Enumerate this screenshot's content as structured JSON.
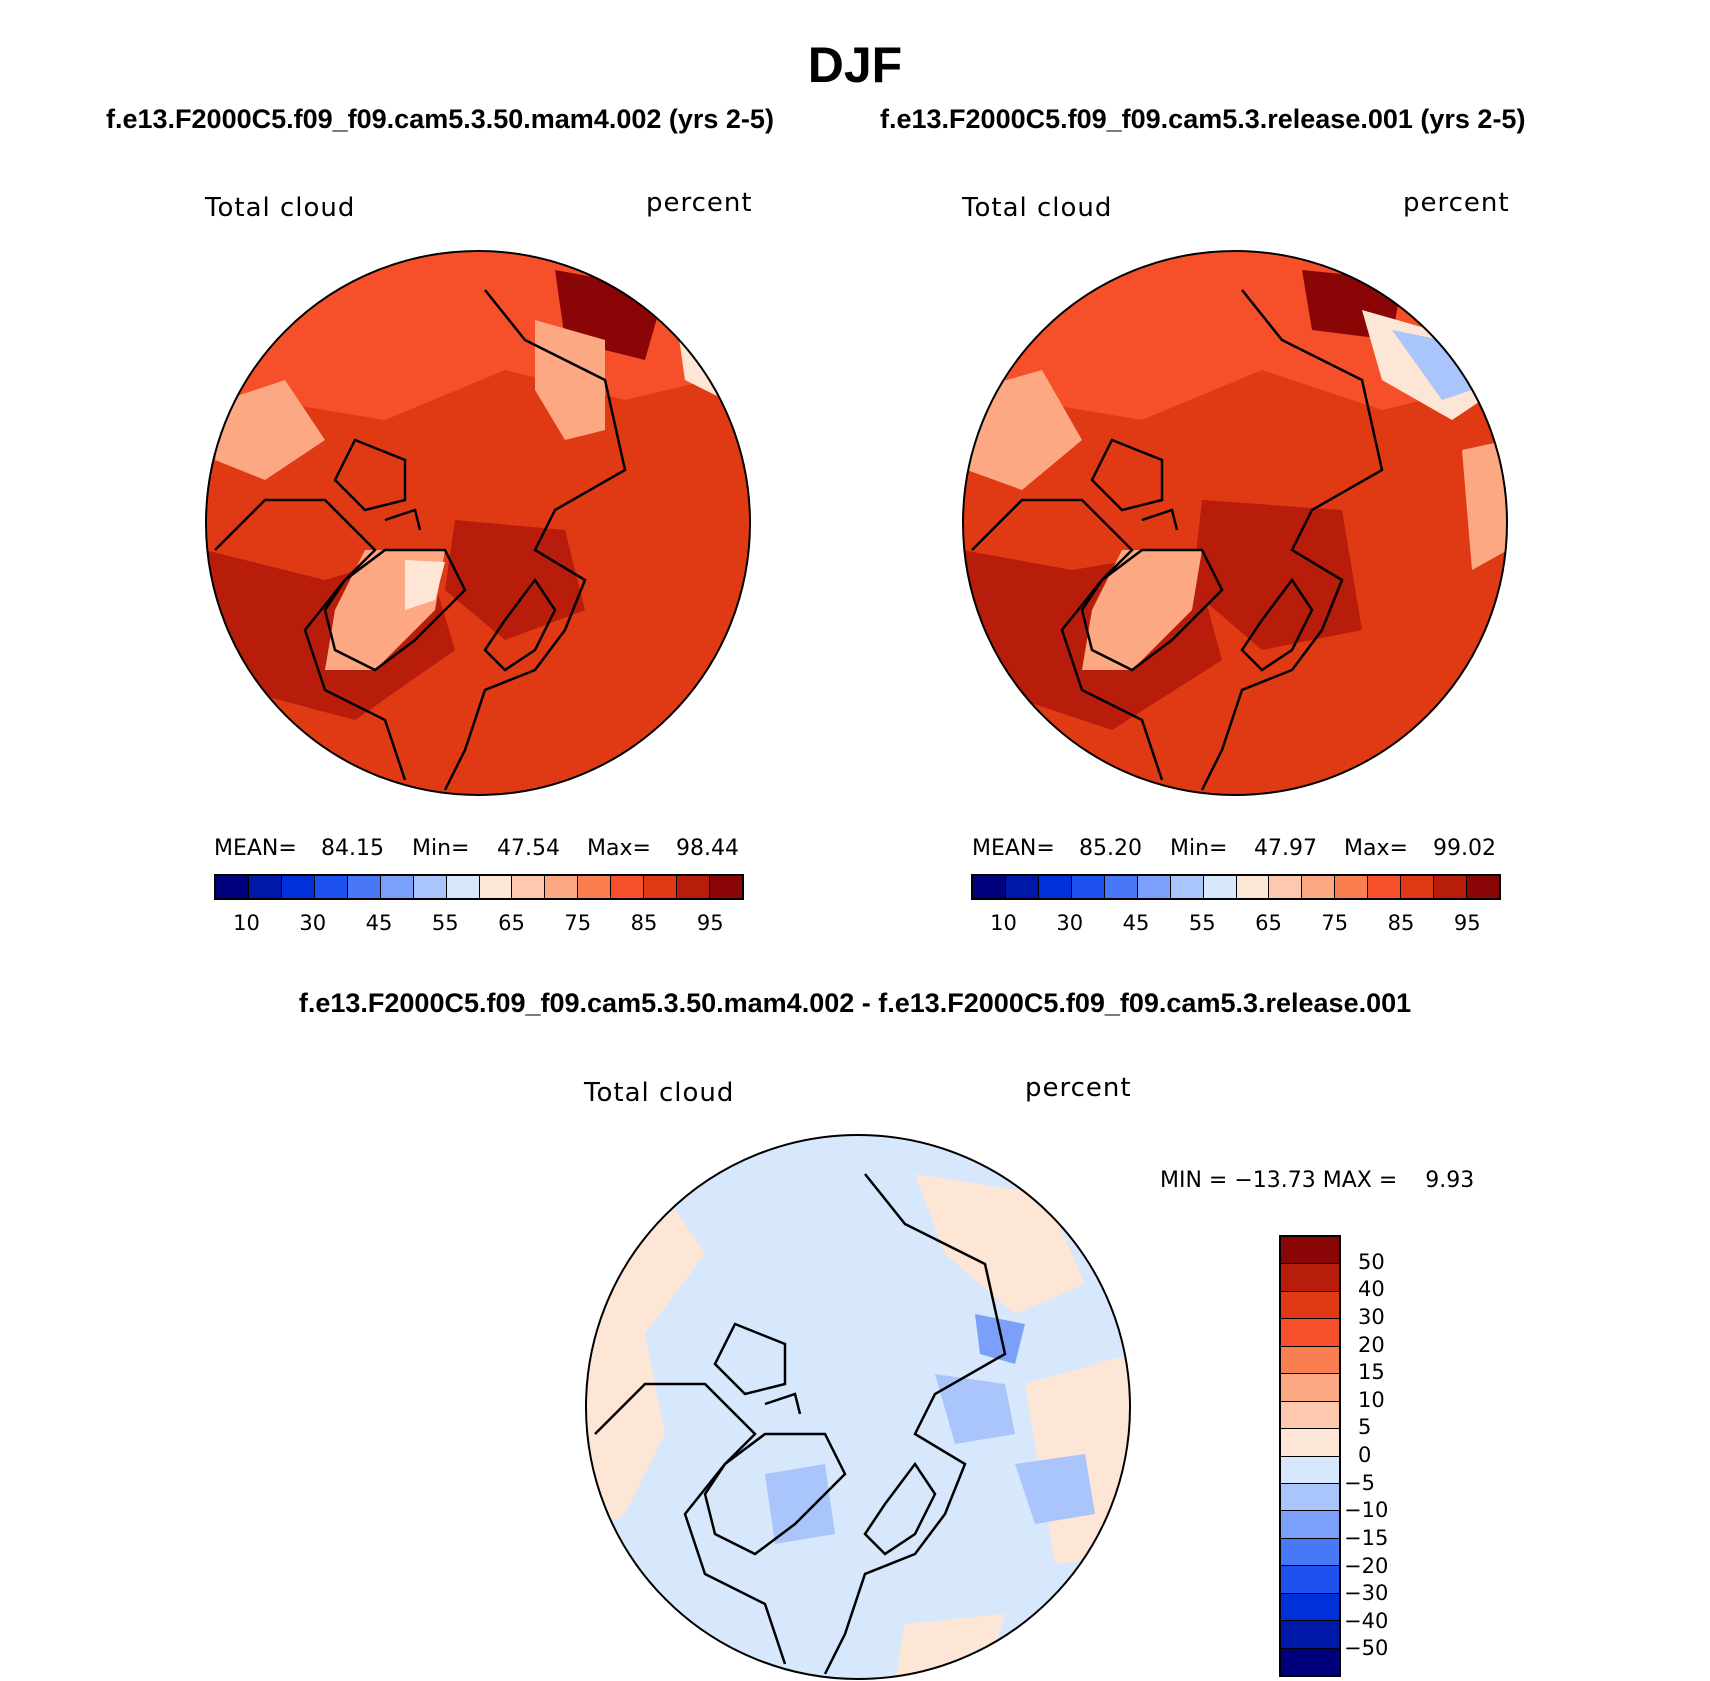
{
  "figure": {
    "title": "DJF",
    "left_subtitle": "f.e13.F2000C5.f09_f09.cam5.3.50.mam4.002 (yrs 2-5)",
    "right_subtitle": "f.e13.F2000C5.f09_f09.cam5.3.release.001 (yrs 2-5)",
    "diff_subtitle": "f.e13.F2000C5.f09_f09.cam5.3.50.mam4.002 - f.e13.F2000C5.f09_f09.cam5.3.release.001"
  },
  "panels": {
    "left": {
      "variable": "Total cloud",
      "units": "percent",
      "mean_label": "MEAN=",
      "mean": "84.15",
      "min_label": "Min=",
      "min": "47.54",
      "max_label": "Max=",
      "max": "98.44"
    },
    "right": {
      "variable": "Total cloud",
      "units": "percent",
      "mean_label": "MEAN=",
      "mean": "85.20",
      "min_label": "Min=",
      "min": "47.97",
      "max_label": "Max=",
      "max": "99.02"
    },
    "diff": {
      "variable": "Total cloud",
      "units": "percent",
      "minmax_text": "MIN = −13.73 MAX =    9.93"
    }
  },
  "colorbars": {
    "absolute": {
      "colors": [
        "#00007f",
        "#0018a8",
        "#0030d8",
        "#1f50f0",
        "#4878f8",
        "#7aa0fa",
        "#aac4fc",
        "#d8e8fc",
        "#fde6d6",
        "#fdc8ae",
        "#fca882",
        "#fa7e50",
        "#f5502a",
        "#e03a14",
        "#b81c0a",
        "#8a0606"
      ],
      "tick_labels": [
        "10",
        "30",
        "45",
        "55",
        "65",
        "75",
        "85",
        "95"
      ]
    },
    "difference": {
      "colors_top_to_bottom": [
        "#8a0606",
        "#b81c0a",
        "#e03a14",
        "#f5502a",
        "#fa7e50",
        "#fca882",
        "#fdc8ae",
        "#fde6d6",
        "#d8e8fc",
        "#aac4fc",
        "#7aa0fa",
        "#4878f8",
        "#1f50f0",
        "#0030d8",
        "#0018a8",
        "#00007f"
      ],
      "tick_labels": [
        "50",
        "40",
        "30",
        "20",
        "15",
        "10",
        "5",
        "0",
        "−5",
        "−10",
        "−15",
        "−20",
        "−30",
        "−40",
        "−50"
      ]
    }
  },
  "map_colors": {
    "abs_base": "#e03a14",
    "abs_dark": "#b81c0a",
    "abs_darkest": "#8a0606",
    "abs_mid": "#f5502a",
    "abs_light": "#fca882",
    "abs_pale": "#fde6d6",
    "diff_base": "#d8e8fc",
    "diff_pos": "#fde6d6",
    "diff_neg": "#aac4fc",
    "diff_neg2": "#7aa0fa"
  }
}
